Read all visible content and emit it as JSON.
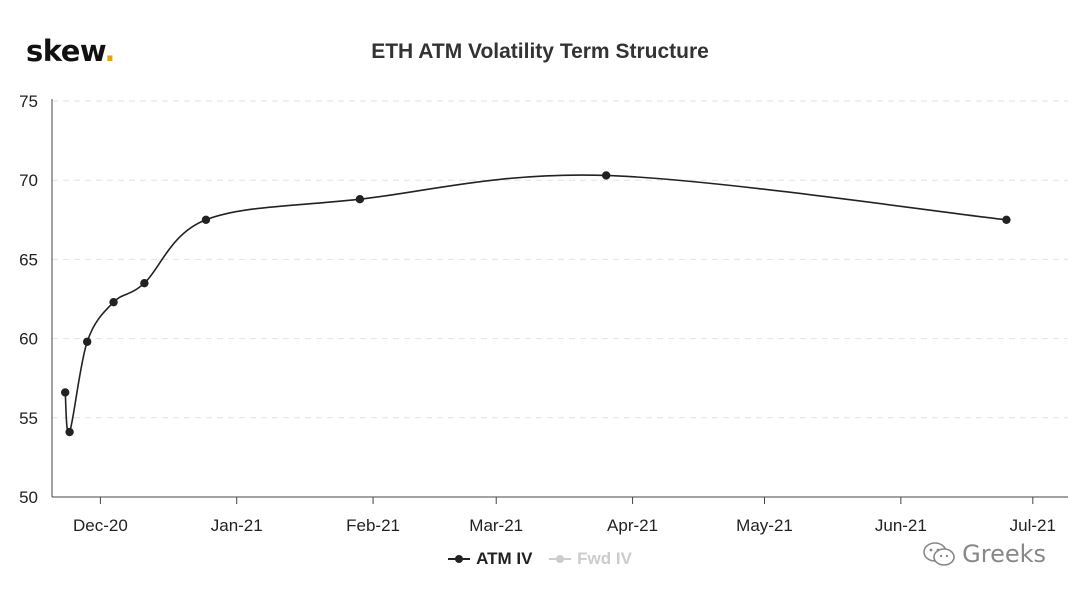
{
  "logo": {
    "text": "skew",
    "dot": "."
  },
  "chart_data": {
    "type": "line",
    "title": "ETH ATM Volatility Term Structure",
    "xlabel": "",
    "ylabel": "",
    "ylim": [
      50,
      75
    ],
    "xlim": [
      "2020-11-20",
      "2021-07-09"
    ],
    "y_ticks": [
      50,
      55,
      60,
      65,
      70,
      75
    ],
    "x_ticks": [
      {
        "label": "Dec-20",
        "date": "2020-12-01"
      },
      {
        "label": "Jan-21",
        "date": "2021-01-01"
      },
      {
        "label": "Feb-21",
        "date": "2021-02-01"
      },
      {
        "label": "Mar-21",
        "date": "2021-03-01"
      },
      {
        "label": "Apr-21",
        "date": "2021-04-01"
      },
      {
        "label": "May-21",
        "date": "2021-05-01"
      },
      {
        "label": "Jun-21",
        "date": "2021-06-01"
      },
      {
        "label": "Jul-21",
        "date": "2021-07-01"
      }
    ],
    "grid": true,
    "legend_position": "bottom-center",
    "series": [
      {
        "name": "ATM IV",
        "color": "#222222",
        "points": [
          {
            "x": "2020-11-23",
            "y": 56.6
          },
          {
            "x": "2020-11-24",
            "y": 54.1
          },
          {
            "x": "2020-11-28",
            "y": 59.8
          },
          {
            "x": "2020-12-04",
            "y": 62.3
          },
          {
            "x": "2020-12-11",
            "y": 63.5
          },
          {
            "x": "2020-12-25",
            "y": 67.5
          },
          {
            "x": "2021-01-29",
            "y": 68.8
          },
          {
            "x": "2021-03-26",
            "y": 70.3
          },
          {
            "x": "2021-06-25",
            "y": 67.5
          }
        ]
      },
      {
        "name": "Fwd IV",
        "color": "#cccccc",
        "points": []
      }
    ]
  },
  "watermark": {
    "text": "Greeks"
  }
}
